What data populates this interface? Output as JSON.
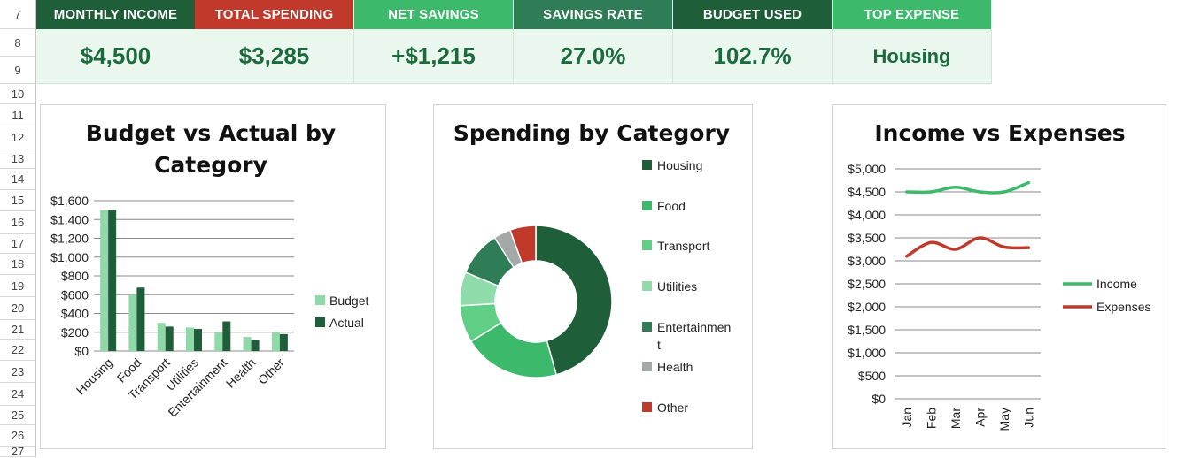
{
  "spreadsheet": {
    "row_numbers": [
      "7",
      "8",
      "9",
      "10",
      "11",
      "12",
      "13",
      "14",
      "15",
      "16",
      "17",
      "18",
      "19",
      "20",
      "21",
      "22",
      "23",
      "24",
      "25",
      "26",
      "27"
    ]
  },
  "kpis": [
    {
      "label": "MONTHLY INCOME",
      "value": "$4,500",
      "color": "#1e5e38"
    },
    {
      "label": "TOTAL SPENDING",
      "value": "$3,285",
      "color": "#c0392b"
    },
    {
      "label": "NET SAVINGS",
      "value": "+$1,215",
      "color": "#3cb96a"
    },
    {
      "label": "SAVINGS RATE",
      "value": "27.0%",
      "color": "#2e7d56"
    },
    {
      "label": "BUDGET USED",
      "value": "102.7%",
      "color": "#1e5e38"
    },
    {
      "label": "TOP EXPENSE",
      "value": "Housing",
      "color": "#3cb96a"
    }
  ],
  "chart_data": [
    {
      "type": "bar",
      "title": "Budget vs Actual by Category",
      "title_lines": [
        "Budget vs Actual by",
        "Category"
      ],
      "categories": [
        "Housing",
        "Food",
        "Transport",
        "Utilities",
        "Entertainment",
        "Health",
        "Other"
      ],
      "series": [
        {
          "name": "Budget",
          "values": [
            1500,
            600,
            300,
            250,
            200,
            150,
            200
          ],
          "color": "#8fd9a8"
        },
        {
          "name": "Actual",
          "values": [
            1500,
            675,
            260,
            235,
            315,
            120,
            180
          ],
          "color": "#1e5e38"
        }
      ],
      "ylim": [
        0,
        1600
      ],
      "yticks": [
        "$0",
        "$200",
        "$400",
        "$600",
        "$800",
        "$1,000",
        "$1,200",
        "$1,400",
        "$1,600"
      ],
      "grid": true,
      "legend": "right"
    },
    {
      "type": "pie",
      "title": "Spending by Category",
      "donut": true,
      "categories": [
        "Housing",
        "Food",
        "Transport",
        "Utilities",
        "Entertainment",
        "Health",
        "Other"
      ],
      "legend_labels": [
        [
          "Housing"
        ],
        [
          "Food"
        ],
        [
          "Transport"
        ],
        [
          "Utilities"
        ],
        [
          "Entertainmen",
          "t"
        ],
        [
          "Health"
        ],
        [
          "Other"
        ]
      ],
      "values": [
        1500,
        675,
        260,
        235,
        315,
        120,
        180
      ],
      "colors": [
        "#1e5e38",
        "#3cb96a",
        "#5fcf85",
        "#8fdcaa",
        "#2e7d56",
        "#a3a9a6",
        "#c0392b"
      ],
      "legend": "right"
    },
    {
      "type": "line",
      "title": "Income vs Expenses",
      "x": [
        "Jan",
        "Feb",
        "Mar",
        "Apr",
        "May",
        "Jun"
      ],
      "series": [
        {
          "name": "Income",
          "values": [
            4500,
            4500,
            4600,
            4500,
            4500,
            4700
          ],
          "color": "#3cb96a"
        },
        {
          "name": "Expenses",
          "values": [
            3100,
            3400,
            3250,
            3500,
            3300,
            3285
          ],
          "color": "#c0392b"
        }
      ],
      "ylim": [
        0,
        5000
      ],
      "yticks": [
        "$0",
        "$500",
        "$1,000",
        "$1,500",
        "$2,000",
        "$2,500",
        "$3,000",
        "$3,500",
        "$4,000",
        "$4,500",
        "$5,000"
      ],
      "grid": true,
      "smooth": true,
      "legend": "right"
    }
  ]
}
